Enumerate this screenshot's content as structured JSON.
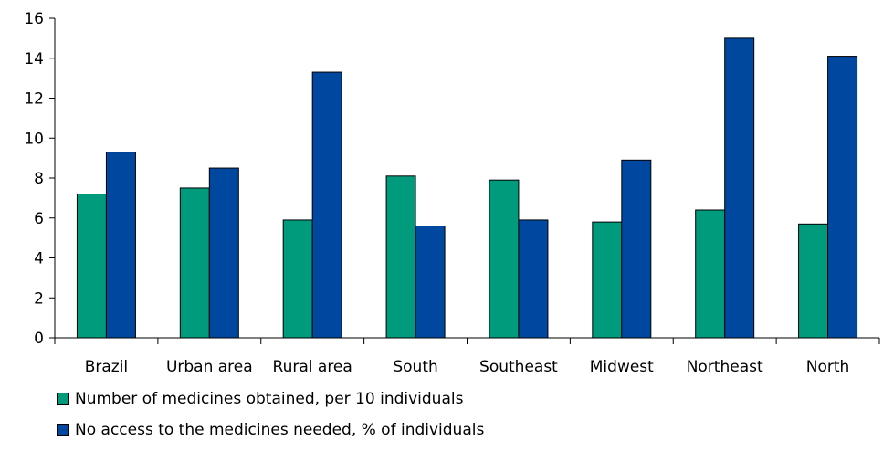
{
  "chart_data": {
    "type": "bar",
    "title": "",
    "xlabel": "",
    "ylabel": "",
    "ylim": [
      0,
      16
    ],
    "yticks": [
      0,
      2,
      4,
      6,
      8,
      10,
      12,
      14,
      16
    ],
    "grid": false,
    "legend_position": "bottom-left",
    "categories": [
      "Brazil",
      "Urban area",
      "Rural area",
      "South",
      "Southeast",
      "Midwest",
      "Northeast",
      "North"
    ],
    "series": [
      {
        "name": "Number of medicines obtained, per 10 individuals",
        "color": "#009a7c",
        "values": [
          7.2,
          7.5,
          5.9,
          8.1,
          7.9,
          5.8,
          6.4,
          5.7
        ]
      },
      {
        "name": "No access to the medicines needed, % of individuals",
        "color": "#0047a0",
        "values": [
          9.3,
          8.5,
          13.3,
          5.6,
          5.9,
          8.9,
          15.0,
          14.1
        ]
      }
    ]
  }
}
